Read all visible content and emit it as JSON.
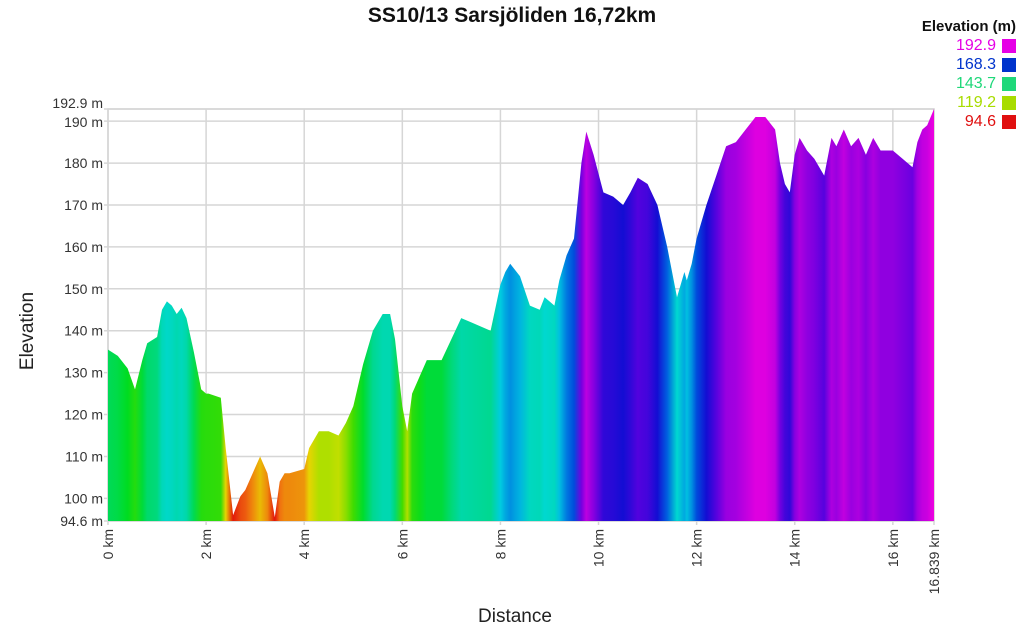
{
  "title": "SS10/13 Sarsjöliden 16,72km",
  "legend": {
    "title": "Elevation (m)",
    "items": [
      {
        "label": "192.9",
        "color": "#e600e6"
      },
      {
        "label": "168.3",
        "color": "#0033cc"
      },
      {
        "label": "143.7",
        "color": "#1fd87a"
      },
      {
        "label": "119.2",
        "color": "#a8dc00"
      },
      {
        "label": "94.6",
        "color": "#e01010"
      }
    ]
  },
  "axes": {
    "xlabel": "Distance",
    "ylabel": "Elevation",
    "yticks": [
      "192.9 m",
      "190 m",
      "180 m",
      "170 m",
      "160 m",
      "150 m",
      "140 m",
      "130 m",
      "120 m",
      "110 m",
      "100 m",
      "94.6 m"
    ],
    "xticks": [
      "0 km",
      "2 km",
      "4 km",
      "6 km",
      "8 km",
      "10 km",
      "12 km",
      "14 km",
      "16 km",
      "16.839 km"
    ]
  },
  "chart_data": {
    "type": "area",
    "title": "SS10/13 Sarsjöliden 16,72km",
    "xlabel": "Distance",
    "ylabel": "Elevation",
    "x_unit": "km",
    "y_unit": "m",
    "xlim": [
      0,
      16.839
    ],
    "ylim": [
      94.6,
      192.9
    ],
    "grid": true,
    "legend_position": "top-right",
    "color_scale": {
      "title": "Elevation (m)",
      "stops": [
        [
          94.6,
          "#e01010"
        ],
        [
          119.2,
          "#a8dc00"
        ],
        [
          143.7,
          "#1fd87a"
        ],
        [
          168.3,
          "#0033cc"
        ],
        [
          192.9,
          "#e600e6"
        ]
      ]
    },
    "x": [
      0,
      0.2,
      0.4,
      0.55,
      0.7,
      0.8,
      1.0,
      1.1,
      1.2,
      1.3,
      1.4,
      1.5,
      1.6,
      1.75,
      1.9,
      2.0,
      2.05,
      2.3,
      2.4,
      2.55,
      2.7,
      2.8,
      2.95,
      3.1,
      3.25,
      3.4,
      3.5,
      3.6,
      3.7,
      4.0,
      4.1,
      4.3,
      4.5,
      4.7,
      4.85,
      5.0,
      5.2,
      5.4,
      5.6,
      5.75,
      5.85,
      6.0,
      6.1,
      6.2,
      6.35,
      6.5,
      6.8,
      7.0,
      7.2,
      7.4,
      7.6,
      7.8,
      8.0,
      8.1,
      8.2,
      8.4,
      8.6,
      8.8,
      8.9,
      9.0,
      9.1,
      9.2,
      9.35,
      9.5,
      9.65,
      9.75,
      9.9,
      10.1,
      10.3,
      10.5,
      10.65,
      10.8,
      11.0,
      11.2,
      11.4,
      11.6,
      11.75,
      11.8,
      11.9,
      12.0,
      12.2,
      12.4,
      12.6,
      12.8,
      13.0,
      13.2,
      13.4,
      13.6,
      13.7,
      13.8,
      13.9,
      14.0,
      14.1,
      14.25,
      14.4,
      14.6,
      14.75,
      14.85,
      15.0,
      15.15,
      15.3,
      15.45,
      15.6,
      15.75,
      15.85,
      16.0,
      16.2,
      16.4,
      16.5,
      16.6,
      16.7,
      16.839
    ],
    "values": [
      135.5,
      134,
      131,
      126,
      133,
      137,
      138.5,
      145,
      147,
      146,
      144,
      145.5,
      143,
      135,
      126,
      125,
      125,
      124,
      112,
      96,
      100.5,
      102,
      106,
      110,
      106,
      95.5,
      104,
      106,
      106,
      107,
      112,
      116,
      116,
      115,
      118,
      122,
      132,
      140,
      144,
      144,
      138,
      122,
      116,
      125,
      129,
      133,
      133,
      138,
      143,
      142,
      141,
      140,
      151,
      154,
      156,
      153,
      146,
      145,
      148,
      147,
      146,
      152,
      158,
      162,
      180,
      187.5,
      182,
      173,
      172,
      170,
      173,
      176.5,
      175,
      170,
      160,
      148,
      154,
      152,
      156,
      162,
      170,
      177,
      184,
      185,
      188,
      191,
      191,
      188,
      180,
      175,
      173,
      182,
      186,
      183,
      181,
      177,
      186,
      184,
      188,
      184,
      186,
      182,
      186,
      183,
      183,
      183,
      181,
      179,
      185,
      188,
      189,
      192.9
    ]
  }
}
